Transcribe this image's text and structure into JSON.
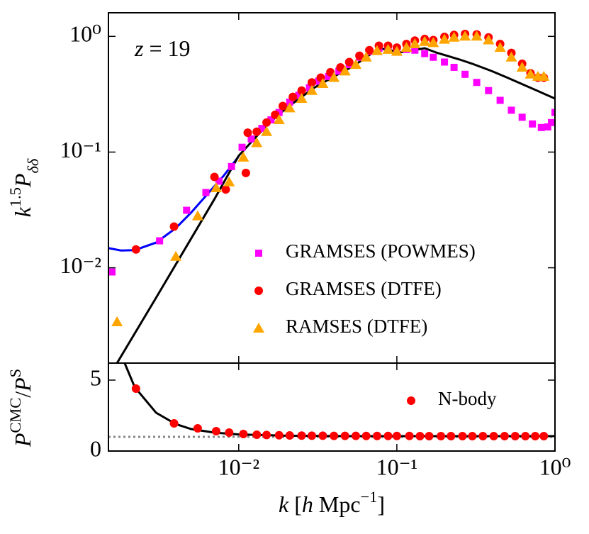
{
  "chart_data": [
    {
      "type": "scatter",
      "log_x": true,
      "log_y": true,
      "ylabel": "k1.5Pδδ",
      "annotation": "z = 19",
      "xlim": [
        0.0015,
        1
      ],
      "ylim": [
        0.0015,
        1.6
      ],
      "yticks": [
        {
          "value": 0.01,
          "label": "10⁻²"
        },
        {
          "value": 0.1,
          "label": "10⁻¹"
        },
        {
          "value": 1,
          "label": "10⁰"
        }
      ],
      "legend": "lower right",
      "series": [
        {
          "name": "GRAMSES (POWMES)",
          "color": "#ff00ff",
          "marker": "square",
          "x": [
            0.00158,
            0.00316,
            0.00468,
            0.0062,
            0.0075,
            0.009,
            0.0105,
            0.012,
            0.014,
            0.016,
            0.018,
            0.021,
            0.024,
            0.028,
            0.032,
            0.037,
            0.043,
            0.05,
            0.058,
            0.067,
            0.077,
            0.088,
            0.1,
            0.115,
            0.13,
            0.15,
            0.17,
            0.2,
            0.23,
            0.27,
            0.32,
            0.38,
            0.45,
            0.53,
            0.62,
            0.72,
            0.82,
            0.9,
            0.95,
            1.0
          ],
          "values": [
            0.0092,
            0.0171,
            0.0314,
            0.0447,
            0.056,
            0.075,
            0.11,
            0.13,
            0.16,
            0.19,
            0.22,
            0.27,
            0.31,
            0.36,
            0.41,
            0.45,
            0.5,
            0.57,
            0.66,
            0.74,
            0.79,
            0.78,
            0.74,
            0.77,
            0.76,
            0.71,
            0.66,
            0.6,
            0.54,
            0.47,
            0.4,
            0.34,
            0.28,
            0.23,
            0.2,
            0.175,
            0.163,
            0.165,
            0.18,
            0.22
          ]
        },
        {
          "name": "GRAMSES (DTFE)",
          "color": "#ff0000",
          "marker": "circle",
          "x": [
            0.00224,
            0.0039,
            0.00702,
            0.00828,
            0.0111,
            0.0114,
            0.013,
            0.015,
            0.017,
            0.019,
            0.022,
            0.025,
            0.029,
            0.033,
            0.038,
            0.044,
            0.05,
            0.058,
            0.067,
            0.077,
            0.088,
            0.1,
            0.115,
            0.13,
            0.15,
            0.17,
            0.2,
            0.23,
            0.27,
            0.32,
            0.38,
            0.45,
            0.53,
            0.62,
            0.7,
            0.78,
            0.85
          ],
          "values": [
            0.0144,
            0.0227,
            0.061,
            0.0475,
            0.066,
            0.147,
            0.15,
            0.18,
            0.21,
            0.25,
            0.3,
            0.34,
            0.4,
            0.44,
            0.49,
            0.54,
            0.6,
            0.68,
            0.76,
            0.83,
            0.83,
            0.8,
            0.86,
            0.92,
            0.95,
            0.93,
            0.99,
            1.03,
            1.05,
            1.04,
            0.98,
            0.86,
            0.72,
            0.58,
            0.48,
            0.44,
            0.44
          ]
        },
        {
          "name": "RAMSES (DTFE)",
          "color": "#ffa500",
          "marker": "triangle",
          "x": [
            0.0017,
            0.004,
            0.0055,
            0.0072,
            0.0087,
            0.0107,
            0.013,
            0.015,
            0.018,
            0.021,
            0.025,
            0.029,
            0.034,
            0.04,
            0.047,
            0.055,
            0.064,
            0.075,
            0.088,
            0.1,
            0.115,
            0.13,
            0.15,
            0.17,
            0.2,
            0.23,
            0.27,
            0.32,
            0.38,
            0.45,
            0.53,
            0.62,
            0.7,
            0.78,
            0.85
          ],
          "values": [
            0.0034,
            0.0125,
            0.028,
            0.049,
            0.055,
            0.09,
            0.12,
            0.15,
            0.19,
            0.24,
            0.29,
            0.34,
            0.39,
            0.44,
            0.5,
            0.57,
            0.66,
            0.75,
            0.77,
            0.74,
            0.8,
            0.86,
            0.9,
            0.88,
            0.94,
            0.98,
            1.0,
            1.0,
            0.93,
            0.8,
            0.66,
            0.54,
            0.47,
            0.45,
            0.45
          ]
        }
      ],
      "lines": [
        {
          "color": "#0000ff",
          "x": [
            0.0015,
            0.0018,
            0.0022,
            0.003,
            0.004,
            0.005,
            0.0065,
            0.008,
            0.01
          ],
          "values": [
            0.0148,
            0.0141,
            0.0142,
            0.0165,
            0.022,
            0.03,
            0.045,
            0.062,
            0.092
          ]
        },
        {
          "color": "#000000",
          "x": [
            0.0017,
            0.003,
            0.005,
            0.007,
            0.01,
            0.015,
            0.02,
            0.03,
            0.04,
            0.05,
            0.06,
            0.07,
            0.08,
            0.09,
            0.1,
            0.12,
            0.15,
            0.18,
            0.2,
            0.25,
            0.3,
            0.4,
            0.5,
            0.7,
            1.0
          ],
          "values": [
            0.0015,
            0.0055,
            0.0179,
            0.039,
            0.093,
            0.17,
            0.24,
            0.36,
            0.45,
            0.53,
            0.62,
            0.72,
            0.78,
            0.77,
            0.72,
            0.75,
            0.79,
            0.72,
            0.69,
            0.63,
            0.58,
            0.5,
            0.44,
            0.36,
            0.29
          ]
        }
      ]
    },
    {
      "type": "scatter",
      "log_x": true,
      "ylabel": "PCMC/PS",
      "xlabel": "k [h Mpc−1]",
      "xlim": [
        0.0015,
        1
      ],
      "ylim": [
        0,
        6.2
      ],
      "xticks": [
        {
          "value": 0.01,
          "label": "10⁻²"
        },
        {
          "value": 0.1,
          "label": "10⁻¹"
        },
        {
          "value": 1,
          "label": "10⁰"
        }
      ],
      "yticks": [
        0,
        5
      ],
      "legend": "upper right",
      "reference_line": 1,
      "series": [
        {
          "name": "N-body",
          "color": "#ff0000",
          "marker": "circle",
          "x": [
            0.00224,
            0.0039,
            0.0055,
            0.0072,
            0.0087,
            0.0107,
            0.013,
            0.015,
            0.018,
            0.021,
            0.025,
            0.029,
            0.034,
            0.04,
            0.047,
            0.055,
            0.064,
            0.075,
            0.088,
            0.1,
            0.12,
            0.14,
            0.16,
            0.19,
            0.22,
            0.26,
            0.3,
            0.35,
            0.41,
            0.48,
            0.56,
            0.65,
            0.75,
            0.85
          ],
          "values": [
            4.4,
            1.95,
            1.6,
            1.4,
            1.3,
            1.2,
            1.15,
            1.13,
            1.11,
            1.1,
            1.09,
            1.08,
            1.08,
            1.07,
            1.07,
            1.07,
            1.06,
            1.06,
            1.06,
            1.06,
            1.06,
            1.05,
            1.05,
            1.05,
            1.05,
            1.05,
            1.05,
            1.05,
            1.05,
            1.05,
            1.05,
            1.05,
            1.05,
            1.05
          ]
        }
      ],
      "lines": [
        {
          "color": "#000000",
          "x": [
            0.0019,
            0.0022,
            0.003,
            0.004,
            0.005,
            0.007,
            0.01,
            0.02,
            0.05,
            0.1,
            1.0
          ],
          "values": [
            6.2,
            4.5,
            2.7,
            1.9,
            1.55,
            1.3,
            1.17,
            1.08,
            1.05,
            1.05,
            1.05
          ]
        }
      ]
    }
  ]
}
